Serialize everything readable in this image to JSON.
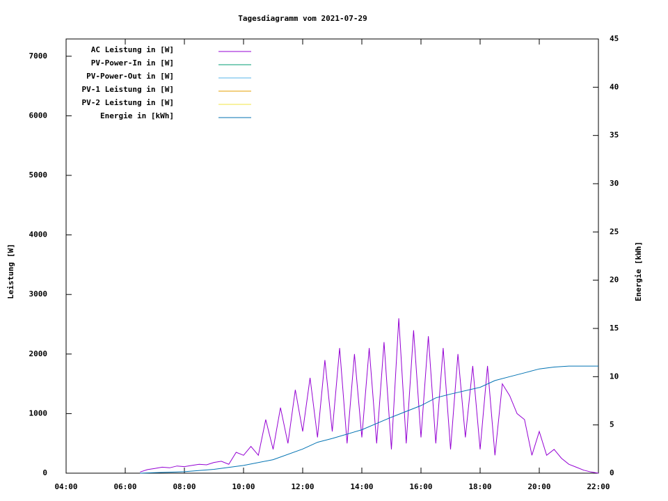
{
  "chart_data": {
    "type": "line",
    "title": "Tagesdiagramm vom 2021-07-29",
    "y_label": "Leistung [W]",
    "y2_label": "Energie [kWh]",
    "xlim": [
      "04:00",
      "22:00"
    ],
    "xticks": [
      "04:00",
      "06:00",
      "08:00",
      "10:00",
      "12:00",
      "14:00",
      "16:00",
      "18:00",
      "20:00",
      "22:00"
    ],
    "ylim": [
      0,
      7290
    ],
    "yticks": [
      0,
      1000,
      2000,
      3000,
      4000,
      5000,
      6000,
      7000
    ],
    "y2lim": [
      0,
      45
    ],
    "y2ticks": [
      0,
      5,
      10,
      15,
      20,
      25,
      30,
      35,
      40,
      45
    ],
    "legend": "top-left",
    "series": [
      {
        "name": "AC Leistung in [W]",
        "color": "#9400d3",
        "x": [
          "06:30",
          "06:45",
          "07:00",
          "07:15",
          "07:30",
          "07:45",
          "08:00",
          "08:15",
          "08:30",
          "08:45",
          "09:00",
          "09:15",
          "09:30",
          "09:45",
          "10:00",
          "10:15",
          "10:30",
          "10:45",
          "11:00",
          "11:15",
          "11:30",
          "11:45",
          "12:00",
          "12:15",
          "12:30",
          "12:45",
          "13:00",
          "13:15",
          "13:30",
          "13:45",
          "14:00",
          "14:15",
          "14:30",
          "14:45",
          "15:00",
          "15:15",
          "15:30",
          "15:45",
          "16:00",
          "16:15",
          "16:30",
          "16:45",
          "17:00",
          "17:15",
          "17:30",
          "17:45",
          "18:00",
          "18:15",
          "18:30",
          "18:45",
          "19:00",
          "19:15",
          "19:30",
          "19:45",
          "20:00",
          "20:15",
          "20:30",
          "20:45",
          "21:00",
          "21:15",
          "21:30",
          "21:45",
          "22:00"
        ],
        "values": [
          20,
          60,
          80,
          100,
          90,
          120,
          110,
          130,
          150,
          140,
          180,
          200,
          150,
          350,
          300,
          450,
          300,
          900,
          400,
          1100,
          500,
          1400,
          700,
          1600,
          600,
          1900,
          700,
          2100,
          500,
          2000,
          600,
          2100,
          500,
          2200,
          400,
          2600,
          500,
          2400,
          600,
          2300,
          500,
          2100,
          400,
          2000,
          600,
          1800,
          400,
          1800,
          300,
          1500,
          1300,
          1000,
          900,
          300,
          700,
          300,
          400,
          250,
          150,
          100,
          50,
          20,
          0
        ]
      },
      {
        "name": "PV-Power-In in [W]",
        "color": "#009e73",
        "x": [],
        "values": []
      },
      {
        "name": "PV-Power-Out in [W]",
        "color": "#56b4e9",
        "x": [],
        "values": []
      },
      {
        "name": "PV-1 Leistung in [W]",
        "color": "#e69f00",
        "x": [],
        "values": []
      },
      {
        "name": "PV-2 Leistung in [W]",
        "color": "#f0e442",
        "x": [],
        "values": []
      },
      {
        "name": "Energie in [kWh]",
        "color": "#0072b2",
        "axis": "y2",
        "x": [
          "06:30",
          "07:00",
          "08:00",
          "09:00",
          "10:00",
          "11:00",
          "12:00",
          "12:30",
          "13:00",
          "14:00",
          "15:00",
          "16:00",
          "16:30",
          "17:00",
          "18:00",
          "18:30",
          "19:00",
          "19:30",
          "20:00",
          "20:30",
          "21:00",
          "22:00"
        ],
        "values": [
          0,
          0.05,
          0.15,
          0.4,
          0.8,
          1.4,
          2.5,
          3.2,
          3.6,
          4.5,
          5.8,
          7.0,
          7.8,
          8.2,
          8.9,
          9.6,
          10.0,
          10.4,
          10.8,
          11.0,
          11.1,
          11.1
        ]
      }
    ]
  }
}
